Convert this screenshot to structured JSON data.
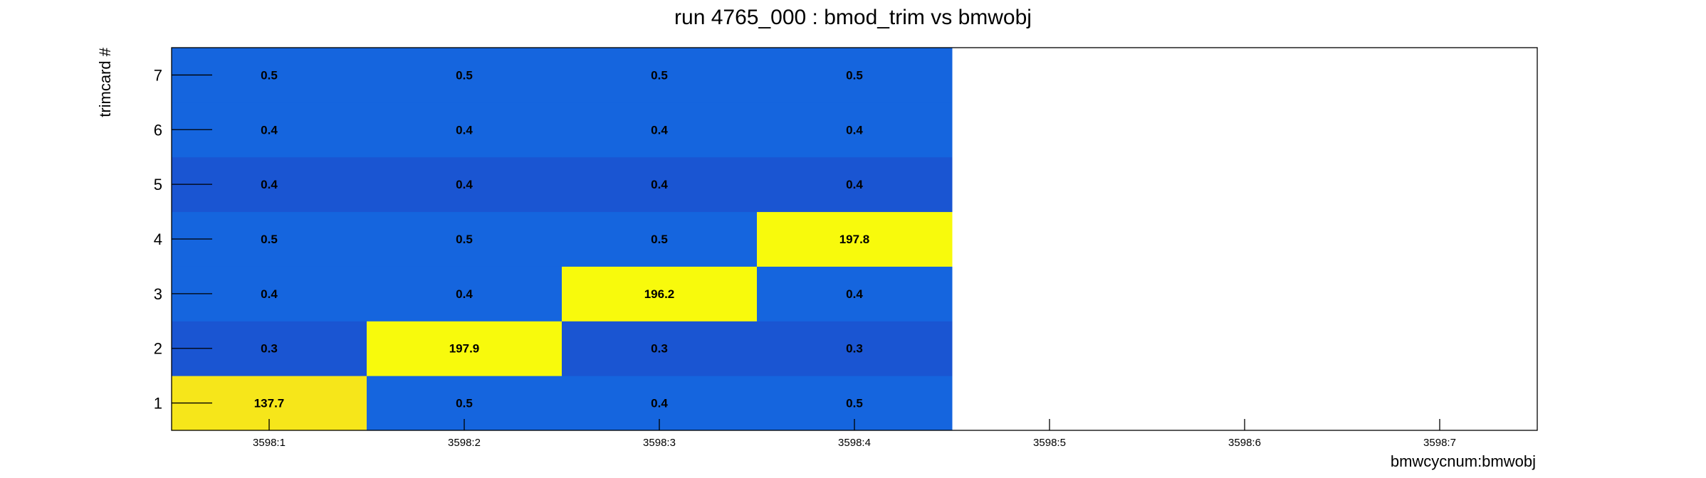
{
  "chart_data": {
    "type": "heatmap",
    "title": "run 4765_000 : bmod_trim vs bmwobj",
    "xlabel": "bmwcycnum:bmwobj",
    "ylabel": "trimcard #",
    "x_categories": [
      "3598:1",
      "3598:2",
      "3598:3",
      "3598:4",
      "3598:5",
      "3598:6",
      "3598:7"
    ],
    "y_categories": [
      "1",
      "2",
      "3",
      "4",
      "5",
      "6",
      "7"
    ],
    "values": [
      [
        137.7,
        0.5,
        0.4,
        0.5,
        null,
        null,
        null
      ],
      [
        0.3,
        197.9,
        0.3,
        0.3,
        null,
        null,
        null
      ],
      [
        0.4,
        0.4,
        196.2,
        0.4,
        null,
        null,
        null
      ],
      [
        0.5,
        0.5,
        0.5,
        197.8,
        null,
        null,
        null
      ],
      [
        0.4,
        0.4,
        0.4,
        0.4,
        null,
        null,
        null
      ],
      [
        0.4,
        0.4,
        0.4,
        0.4,
        null,
        null,
        null
      ],
      [
        0.5,
        0.5,
        0.5,
        0.5,
        null,
        null,
        null
      ]
    ],
    "value_labels": [
      [
        "137.7",
        "0.5",
        "0.4",
        "0.5",
        "",
        "",
        ""
      ],
      [
        "0.3",
        "197.9",
        "0.3",
        "0.3",
        "",
        "",
        ""
      ],
      [
        "0.4",
        "0.4",
        "196.2",
        "0.4",
        "",
        "",
        ""
      ],
      [
        "0.5",
        "0.5",
        "0.5",
        "197.8",
        "",
        "",
        ""
      ],
      [
        "0.4",
        "0.4",
        "0.4",
        "0.4",
        "",
        "",
        ""
      ],
      [
        "0.4",
        "0.4",
        "0.4",
        "0.4",
        "",
        "",
        ""
      ],
      [
        "0.5",
        "0.5",
        "0.5",
        "0.5",
        "",
        "",
        ""
      ]
    ],
    "colors": {
      "low": "#1565de",
      "low_alt": "#1a55d2",
      "high": "#f8fa0c",
      "mid_high": "#f6e61a"
    },
    "row_colors": [
      "#1565de",
      "#1a55d2",
      "#1565de",
      "#1565de",
      "#1a55d2",
      "#1565de",
      "#1565de"
    ],
    "grid": false,
    "legend": "none"
  }
}
